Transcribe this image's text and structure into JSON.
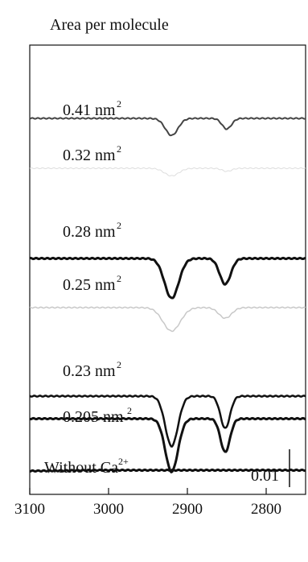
{
  "chart_data": {
    "type": "line",
    "title": "Area per molecule",
    "x_axis": {
      "reversed": true,
      "ticks": [
        3100,
        3000,
        2900,
        2800
      ],
      "tick_labels": [
        "3100",
        "3000",
        "2900",
        "2800"
      ],
      "xlim": [
        3100,
        2750
      ]
    },
    "scale_bar": {
      "label": "0.01",
      "value": 0.01
    },
    "series": [
      {
        "label_main": "0.41 nm",
        "label_sup": "2",
        "color": "#444444",
        "weight": 2,
        "peaks": [
          {
            "x": 2920,
            "depth": 0.0045,
            "width": 8
          },
          {
            "x": 2850,
            "depth": 0.0028,
            "width": 6
          }
        ]
      },
      {
        "label_main": "0.32 nm",
        "label_sup": "2",
        "color": "#dddddd",
        "weight": 1,
        "peaks": [
          {
            "x": 2920,
            "depth": 0.002,
            "width": 9
          },
          {
            "x": 2850,
            "depth": 0.0008,
            "width": 6
          }
        ]
      },
      {
        "label_main": "0.28 nm",
        "label_sup": "2",
        "color": "#111111",
        "weight": 3,
        "peaks": [
          {
            "x": 2920,
            "depth": 0.0105,
            "width": 9
          },
          {
            "x": 2852,
            "depth": 0.0068,
            "width": 7
          }
        ]
      },
      {
        "label_main": "0.25 nm",
        "label_sup": "2",
        "color": "#c8c8c8",
        "weight": 1.5,
        "peaks": [
          {
            "x": 2920,
            "depth": 0.0062,
            "width": 11
          },
          {
            "x": 2852,
            "depth": 0.0028,
            "width": 8
          }
        ]
      },
      {
        "label_main": "0.23 nm",
        "label_sup": "2",
        "color": "#111111",
        "weight": 2.5,
        "peaks": [
          {
            "x": 2920,
            "depth": 0.0132,
            "width": 8
          },
          {
            "x": 2852,
            "depth": 0.0085,
            "width": 6
          }
        ]
      },
      {
        "label_main": "0.205 nm",
        "label_sup": "2",
        "color": "#111111",
        "weight": 3,
        "peaks": [
          {
            "x": 2920,
            "depth": 0.014,
            "width": 8
          },
          {
            "x": 2852,
            "depth": 0.0088,
            "width": 6
          }
        ]
      },
      {
        "label_main": "Without Ca",
        "label_sup": "2+",
        "color": "#111111",
        "weight": 3,
        "peaks": []
      }
    ]
  }
}
